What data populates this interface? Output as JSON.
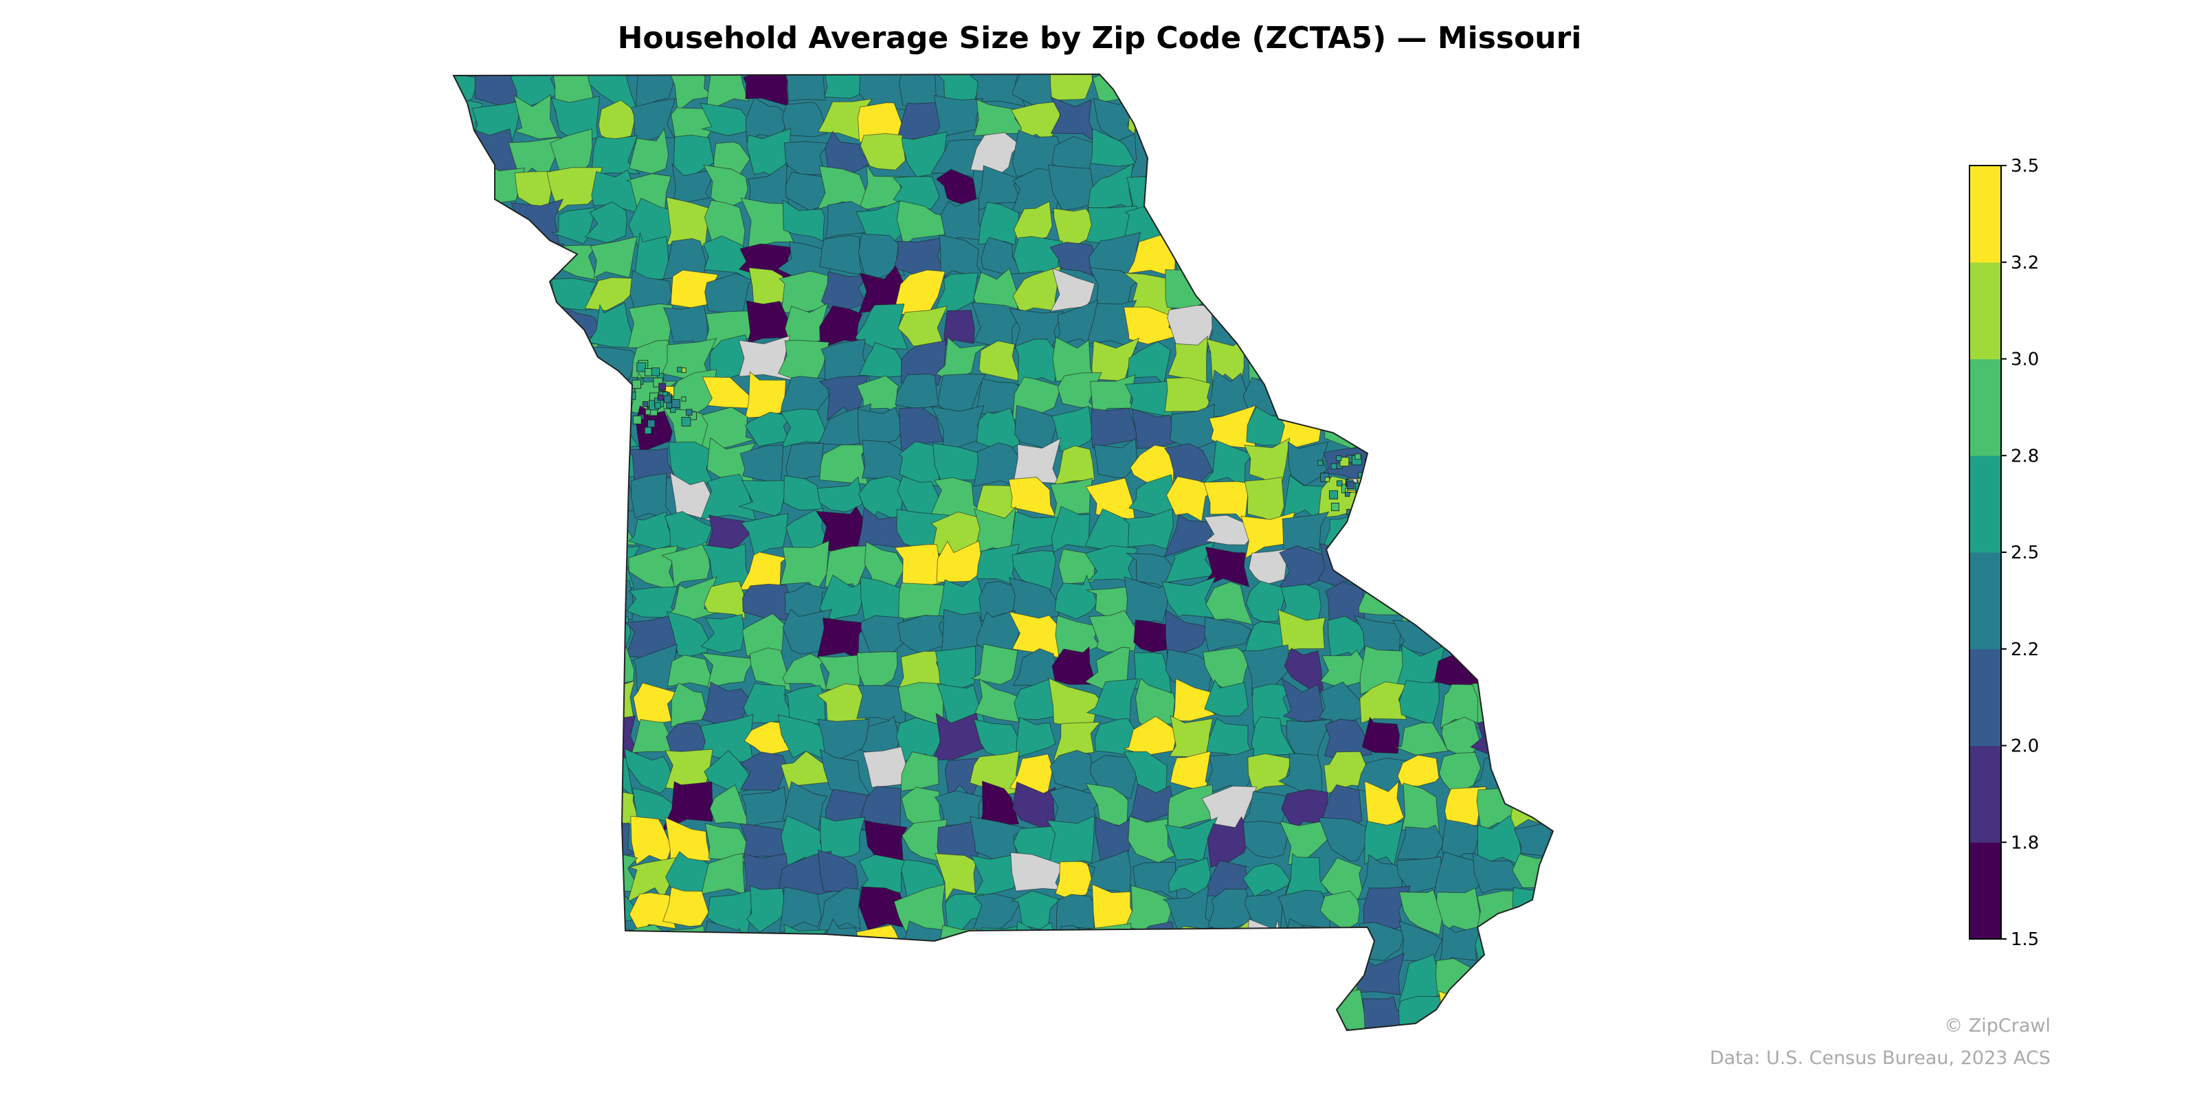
{
  "title": "Household Average Size by Zip Code (ZCTA5) — Missouri",
  "colorbar": {
    "ticks": [
      "1.5",
      "1.8",
      "2.0",
      "2.2",
      "2.5",
      "2.8",
      "3.0",
      "3.2",
      "3.5"
    ],
    "colors": [
      "#440154",
      "#46327e",
      "#365c8d",
      "#277f8e",
      "#1fa187",
      "#4ac16d",
      "#a0da39",
      "#fde725"
    ],
    "range": [
      1.5,
      3.5
    ],
    "missing_color": "#d3d3d3"
  },
  "credit": "© ZipCrawl",
  "source": "Data: U.S. Census Bureau, 2023 ACS"
}
